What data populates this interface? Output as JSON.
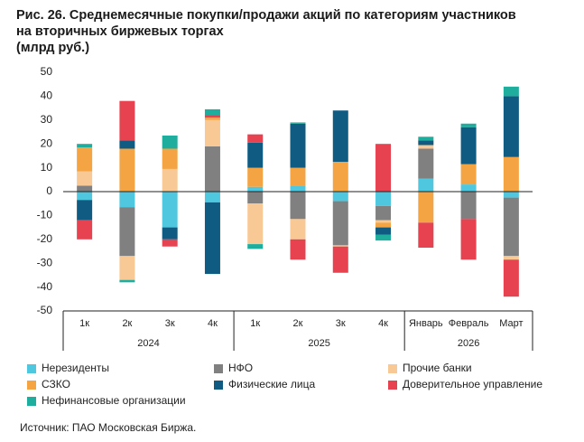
{
  "chart_data": {
    "type": "stacked-bar",
    "title": [
      "Рис. 26. Среднемесячные покупки/продажи акций по категориям участников",
      "на вторичных биржевых торгах",
      "(млрд руб.)"
    ],
    "source": "Источник: ПАО Московская Биржа.",
    "categories": [
      "1к",
      "2к",
      "3к",
      "4к",
      "1к",
      "2к",
      "3к",
      "4к",
      "Январь",
      "Февраль",
      "Март"
    ],
    "groups": [
      {
        "label": "2024",
        "count": 4
      },
      {
        "label": "2025",
        "count": 4
      },
      {
        "label": "2026",
        "count": 3
      }
    ],
    "ylim": [
      -50,
      50
    ],
    "yticks": [
      -50,
      -40,
      -30,
      -20,
      -10,
      0,
      10,
      20,
      30,
      40,
      50
    ],
    "series": [
      {
        "name": "Нерезиденты",
        "color": "#4fc8df",
        "values": [
          -3.5,
          -6.5,
          -15,
          -4.5,
          2,
          2.5,
          -4,
          -6,
          5.5,
          3,
          -2.5
        ]
      },
      {
        "name": "НФО",
        "color": "#808080",
        "values": [
          2.5,
          -20.5,
          0,
          19,
          -5,
          -11.5,
          -18.5,
          -6,
          12.5,
          -11.5,
          -24.5
        ]
      },
      {
        "name": "Прочие банки",
        "color": "#f8c995",
        "values": [
          6,
          -10,
          9.5,
          11,
          -17,
          -8.5,
          -0.5,
          -1,
          1.5,
          0,
          -1.5
        ]
      },
      {
        "name": "СЗКО",
        "color": "#f4a443",
        "values": [
          10,
          18,
          8.5,
          1,
          8,
          7.5,
          12.5,
          -2,
          -13,
          8.5,
          14.5
        ]
      },
      {
        "name": "Физические лица",
        "color": "#0f5b82",
        "values": [
          -8.5,
          3.5,
          -5,
          -30,
          10.5,
          18.5,
          21.5,
          -3,
          2,
          15.5,
          25.5
        ]
      },
      {
        "name": "Доверительное управление",
        "color": "#e6424f",
        "values": [
          -8,
          16.5,
          -3,
          1,
          3.5,
          -8.5,
          -11,
          20,
          -10.5,
          -17,
          -15.5
        ]
      },
      {
        "name": "Нефинансовые организации",
        "color": "#1fae9e",
        "values": [
          1.5,
          -1,
          5.5,
          2.5,
          -2,
          0.5,
          0,
          -2.5,
          1.5,
          1.5,
          4
        ]
      }
    ]
  }
}
